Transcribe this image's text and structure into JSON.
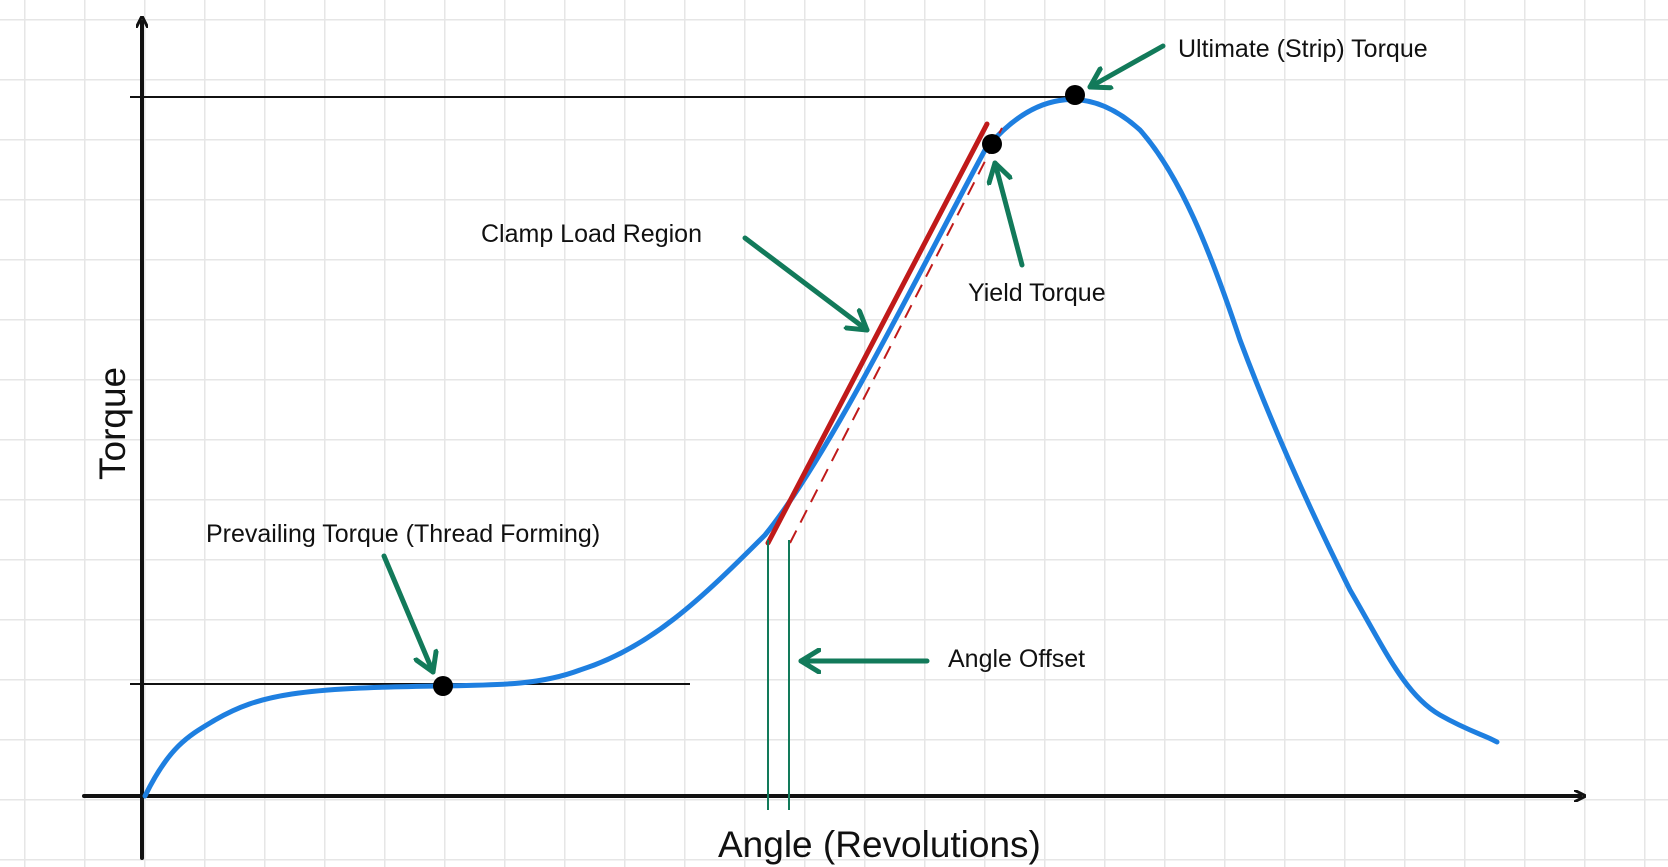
{
  "diagram": {
    "x_axis_label": "Angle (Revolutions)",
    "y_axis_label": "Torque",
    "annotations": {
      "ultimate": "Ultimate (Strip) Torque",
      "yield": "Yield Torque",
      "clamp": "Clamp Load Region",
      "prevailing": "Prevailing Torque (Thread Forming)",
      "offset": "Angle Offset"
    },
    "colors": {
      "curve": "#1e7fe0",
      "clamp_line": "#c01a1a",
      "arrows": "#127a5a",
      "axes": "#111111",
      "grid": "#e6e6e6"
    }
  }
}
